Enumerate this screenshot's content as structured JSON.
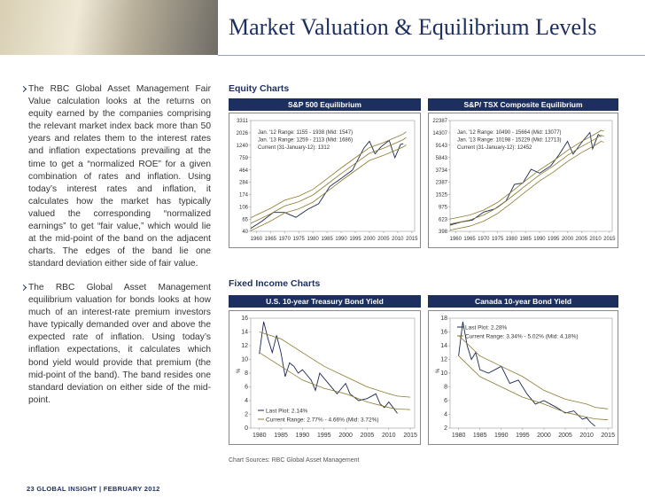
{
  "header": {
    "title": "Market Valuation & Equilibrium Levels"
  },
  "paragraphs": [
    "The RBC Global Asset Management Fair Value calculation looks at the returns on equity earned by the companies comprising the relevant market index back more than 50 years and relates them to the interest rates and inflation expectations prevailing at the time to get a “normalized ROE” for a given combination of rates and inflation. Using today’s interest rates and inflation, it calculates how the market has typically valued the corresponding “normalized earnings” to get “fair value,” which would lie at the mid-point of the band on the adjacent charts. The edges of the band lie one standard deviation either side of fair value.",
    "The RBC Global Asset Management equilibrium valuation for bonds looks at how much of an interest-rate premium investors have typically demanded over and above the expected rate of inflation. Using today’s inflation expectations, it calculates which bond yield would provide that premium (the mid-point of the band). The band resides one standard deviation on either side of the mid-point."
  ],
  "equity_heading": "Equity Charts",
  "fixed_income_heading": "Fixed Income Charts",
  "charts": [
    {
      "type": "line",
      "title": "S&P 500 Equilibrium",
      "log_scale": true,
      "xlim": [
        1958,
        2016
      ],
      "xticks": [
        1960,
        1965,
        1970,
        1975,
        1980,
        1985,
        1990,
        1995,
        2000,
        2005,
        2010,
        2015
      ],
      "ylim": [
        40,
        3311
      ],
      "yticks": [
        40,
        65,
        106,
        174,
        284,
        464,
        759,
        1240,
        2026,
        3311
      ],
      "annotations": [
        "Jan. '12 Range: 1155 - 1938 (Mid: 1547)",
        "Jan. '13 Range: 1259 - 2113 (Mid: 1686)",
        "Current (31-January-12): 1312"
      ],
      "series": [
        {
          "color": "#1b2750",
          "x": [
            1958,
            1962,
            1966,
            1970,
            1974,
            1978,
            1982,
            1986,
            1990,
            1994,
            1998,
            2000,
            2002,
            2004,
            2007,
            2009,
            2011,
            2012
          ],
          "values": [
            45,
            60,
            85,
            85,
            70,
            95,
            120,
            240,
            330,
            460,
            1100,
            1450,
            880,
            1150,
            1500,
            750,
            1280,
            1312
          ]
        },
        {
          "color": "#8a7a2e",
          "x": [
            1958,
            1965,
            1970,
            1975,
            1980,
            1985,
            1990,
            1995,
            2000,
            2005,
            2010,
            2012,
            2013
          ],
          "values": [
            55,
            80,
            110,
            130,
            170,
            260,
            400,
            600,
            900,
            1100,
            1400,
            1547,
            1686
          ]
        },
        {
          "color": "#8a7a2e",
          "x": [
            1958,
            1965,
            1970,
            1975,
            1980,
            1985,
            1990,
            1995,
            2000,
            2005,
            2010,
            2012,
            2013
          ],
          "values": [
            69,
            100,
            138,
            163,
            213,
            325,
            500,
            750,
            1125,
            1375,
            1750,
            1938,
            2113
          ]
        },
        {
          "color": "#8a7a2e",
          "x": [
            1958,
            1965,
            1970,
            1975,
            1980,
            1985,
            1990,
            1995,
            2000,
            2005,
            2010,
            2012,
            2013
          ],
          "values": [
            41,
            60,
            83,
            98,
            128,
            195,
            300,
            450,
            675,
            825,
            1050,
            1155,
            1259
          ]
        }
      ]
    },
    {
      "type": "line",
      "title": "S&P/ TSX Composite Equilibrium",
      "log_scale": true,
      "xlim": [
        1958,
        2016
      ],
      "xticks": [
        1960,
        1965,
        1970,
        1975,
        1980,
        1985,
        1990,
        1995,
        2000,
        2005,
        2010,
        2015
      ],
      "ylim": [
        398,
        22387
      ],
      "yticks": [
        398,
        623,
        975,
        1525,
        2387,
        3734,
        5843,
        9143,
        14307,
        22387
      ],
      "annotations": [
        "Jan. '12 Range: 10490 - 15664 (Mid: 13077)",
        "Jan. '13 Range: 10198 - 15229 (Mid: 12713)",
        "Current (31-January-12): 12452"
      ],
      "series": [
        {
          "color": "#1b2750",
          "x": [
            1958,
            1962,
            1966,
            1970,
            1974,
            1978,
            1981,
            1984,
            1987,
            1990,
            1994,
            1997,
            2000,
            2002,
            2005,
            2008,
            2009,
            2011,
            2012
          ],
          "values": [
            500,
            560,
            600,
            800,
            900,
            1200,
            2200,
            2300,
            3800,
            3300,
            4300,
            6500,
            10500,
            6600,
            10000,
            14500,
            8000,
            13500,
            12452
          ]
        },
        {
          "color": "#8a7a2e",
          "x": [
            1958,
            1965,
            1970,
            1975,
            1980,
            1985,
            1990,
            1995,
            2000,
            2005,
            2010,
            2012,
            2013
          ],
          "values": [
            520,
            600,
            720,
            950,
            1400,
            2100,
            3100,
            4300,
            6300,
            8700,
            11500,
            13077,
            12713
          ]
        },
        {
          "color": "#8a7a2e",
          "x": [
            1958,
            1965,
            1970,
            1975,
            1980,
            1985,
            1990,
            1995,
            2000,
            2005,
            2010,
            2012,
            2013
          ],
          "values": [
            624,
            720,
            864,
            1140,
            1680,
            2520,
            3720,
            5160,
            7560,
            10440,
            13800,
            15664,
            15229
          ]
        },
        {
          "color": "#8a7a2e",
          "x": [
            1958,
            1965,
            1970,
            1975,
            1980,
            1985,
            1990,
            1995,
            2000,
            2005,
            2010,
            2012,
            2013
          ],
          "values": [
            416,
            480,
            576,
            760,
            1120,
            1680,
            2480,
            3440,
            5040,
            6960,
            9200,
            10490,
            10198
          ]
        }
      ]
    },
    {
      "type": "line",
      "title": "U.S. 10-year Treasury Bond Yield",
      "log_scale": false,
      "ylabel": "%",
      "xlim": [
        1978,
        2016
      ],
      "xticks": [
        1980,
        1985,
        1990,
        1995,
        2000,
        2005,
        2010,
        2015
      ],
      "ylim": [
        0,
        16
      ],
      "yticks": [
        0,
        2,
        4,
        6,
        8,
        10,
        12,
        14,
        16
      ],
      "legend_corner": "lower-left",
      "legend": [
        {
          "label": "Last Plot: 2.14%",
          "color": "#1b2750"
        },
        {
          "label": "Current Range: 2.77% - 4.66% (Mid: 3.72%)",
          "color": "#8a7a2e"
        }
      ],
      "series": [
        {
          "color": "#1b2750",
          "x": [
            1980,
            1981,
            1982,
            1983,
            1984,
            1985,
            1986,
            1987,
            1988,
            1989,
            1990,
            1992,
            1993,
            1994,
            1996,
            1998,
            2000,
            2001,
            2003,
            2005,
            2007,
            2008,
            2009,
            2010,
            2011,
            2012
          ],
          "values": [
            10.8,
            15.5,
            13,
            11,
            13.5,
            11,
            7.5,
            9.5,
            9,
            8,
            8.5,
            7,
            5.5,
            8,
            6.5,
            5,
            6.5,
            5,
            4,
            4.3,
            5,
            3.5,
            3,
            3.8,
            3,
            2.14
          ]
        },
        {
          "color": "#8a7a2e",
          "x": [
            1980,
            1985,
            1990,
            1995,
            2000,
            2005,
            2010,
            2012,
            2015
          ],
          "values": [
            14,
            13,
            11,
            9,
            7.5,
            6,
            5,
            4.66,
            4.5
          ]
        },
        {
          "color": "#8a7a2e",
          "x": [
            1980,
            1985,
            1990,
            1995,
            2000,
            2005,
            2010,
            2012,
            2015
          ],
          "values": [
            11,
            9,
            7,
            5.8,
            5,
            3.8,
            3,
            2.77,
            2.7
          ]
        }
      ]
    },
    {
      "type": "line",
      "title": "Canada 10-year Bond Yield",
      "log_scale": false,
      "ylabel": "%",
      "xlim": [
        1978,
        2016
      ],
      "xticks": [
        1980,
        1985,
        1990,
        1995,
        2000,
        2005,
        2010,
        2015
      ],
      "ylim": [
        2,
        18
      ],
      "yticks": [
        2,
        4,
        6,
        8,
        10,
        12,
        14,
        16,
        18
      ],
      "legend_corner": "upper-left",
      "legend": [
        {
          "label": "Last Plot: 2.28%",
          "color": "#1b2750"
        },
        {
          "label": "Current Range: 3.34% - 5.02% (Mid: 4.18%)",
          "color": "#8a7a2e"
        }
      ],
      "series": [
        {
          "color": "#1b2750",
          "x": [
            1980,
            1981,
            1982,
            1983,
            1984,
            1985,
            1987,
            1990,
            1992,
            1994,
            1996,
            1998,
            2000,
            2003,
            2005,
            2007,
            2009,
            2010,
            2011,
            2012
          ],
          "values": [
            12.5,
            17.5,
            14,
            12,
            13,
            10.5,
            10,
            11,
            8.5,
            9,
            7,
            5.5,
            6,
            5,
            4.2,
            4.5,
            3.3,
            3.5,
            2.8,
            2.28
          ]
        },
        {
          "color": "#8a7a2e",
          "x": [
            1980,
            1985,
            1990,
            1995,
            2000,
            2005,
            2010,
            2012,
            2015
          ],
          "values": [
            15.5,
            12.5,
            11,
            9.5,
            7.5,
            6.2,
            5.5,
            5.02,
            4.8
          ]
        },
        {
          "color": "#8a7a2e",
          "x": [
            1980,
            1985,
            1990,
            1995,
            2000,
            2005,
            2010,
            2012,
            2015
          ],
          "values": [
            12.5,
            9.5,
            8,
            6.5,
            5.5,
            4.3,
            3.6,
            3.34,
            3.2
          ]
        }
      ]
    }
  ],
  "source": "Chart Sources: RBC Global Asset Management",
  "footer": "23 GLOBAL INSIGHT | FEBRUARY 2012"
}
